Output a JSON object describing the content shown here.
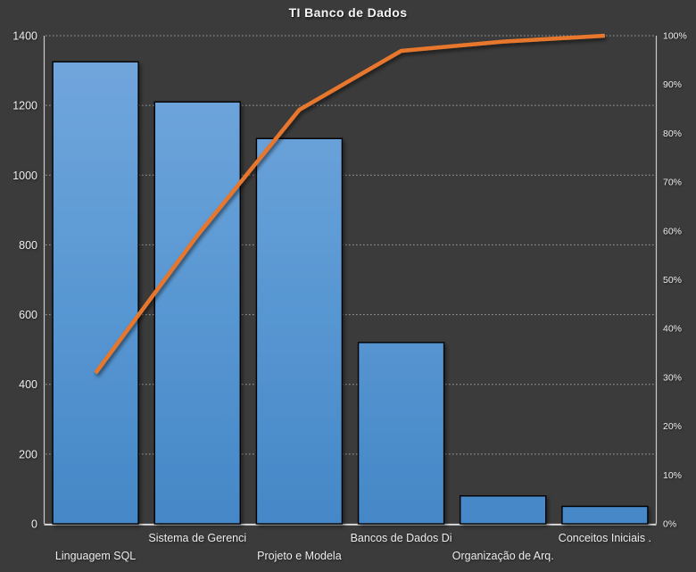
{
  "chart_data": {
    "type": "bar",
    "subtype": "pareto",
    "title": "TI Banco de Dados",
    "categories": [
      "Linguagem SQL",
      "Sistema de Gerenci",
      "Projeto e Modela",
      "Bancos de Dados Di",
      "Organização de Arq.",
      "Conceitos Iniciais ."
    ],
    "series": [
      {
        "name": "bars",
        "type": "bar",
        "axis": "left",
        "values": [
          1325,
          1210,
          1105,
          520,
          80,
          50
        ]
      },
      {
        "name": "cumulative-line",
        "type": "line",
        "axis": "right",
        "values_percent": [
          30.9,
          59.1,
          84.8,
          96.9,
          98.8,
          100.0
        ]
      }
    ],
    "left_axis": {
      "min": 0,
      "max": 1400,
      "step": 200,
      "tick_values": [
        0,
        200,
        400,
        600,
        800,
        1000,
        1200,
        1400
      ],
      "tick_labels": [
        "0",
        "200",
        "400",
        "600",
        "800",
        "1000",
        "1200",
        "1400"
      ]
    },
    "right_axis": {
      "min": 0,
      "max": 100,
      "step": 10,
      "tick_values": [
        0,
        10,
        20,
        30,
        40,
        50,
        60,
        70,
        80,
        90,
        100
      ],
      "tick_labels": [
        "0%",
        "10%",
        "20%",
        "30%",
        "40%",
        "50%",
        "60%",
        "70%",
        "80%",
        "90%",
        "100%"
      ]
    },
    "grid": "horizontal dashed, on",
    "legend": "none",
    "colors": {
      "background": "#3B3B3B",
      "bar_gradient_top": "#73A7DD",
      "bar_gradient_bottom": "#4587C7",
      "bar_outline": "#000000",
      "line": "#E8772D",
      "gridline": "#C0C0C0",
      "axis_line": "#E2E2E2",
      "text": "#EDEDED",
      "title_text": "#F5F5F5"
    }
  }
}
